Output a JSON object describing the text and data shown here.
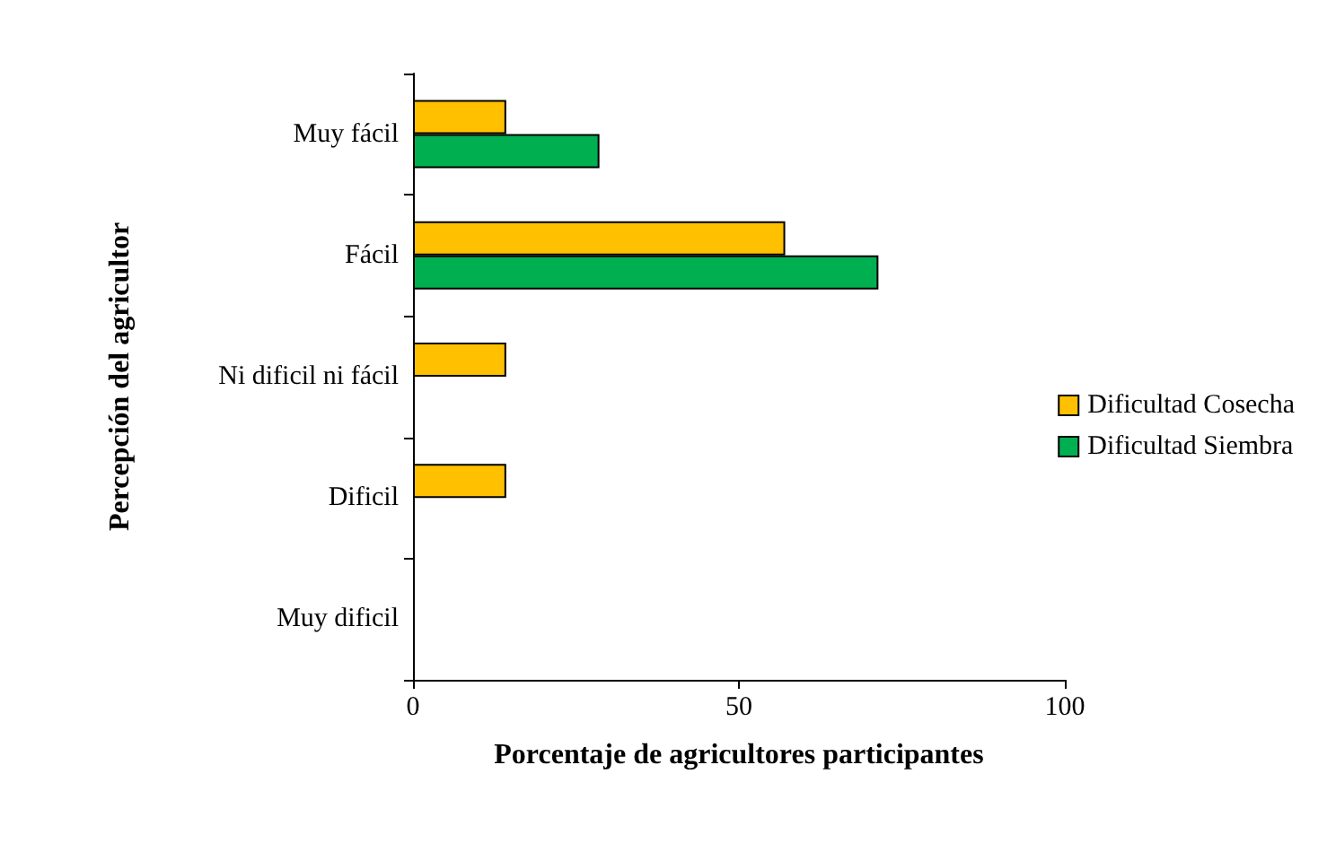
{
  "chart_data": {
    "type": "bar",
    "orientation": "horizontal",
    "xlabel": "Porcentaje de agricultores participantes",
    "ylabel": "Percepción del agricultor",
    "categories": [
      "Muy fácil",
      "Fácil",
      "Ni dificil ni fácil",
      "Dificil",
      "Muy dificil"
    ],
    "series": [
      {
        "name": "Dificultad Cosecha",
        "color": "#ffc000",
        "values": [
          14.3,
          57.1,
          14.3,
          14.3,
          0
        ]
      },
      {
        "name": "Dificultad Siembra",
        "color": "#00b050",
        "values": [
          28.6,
          71.4,
          0,
          0,
          0
        ]
      }
    ],
    "xlim": [
      0,
      100
    ],
    "xticks": [
      0,
      50,
      100
    ],
    "grid": false,
    "legend": "right"
  }
}
